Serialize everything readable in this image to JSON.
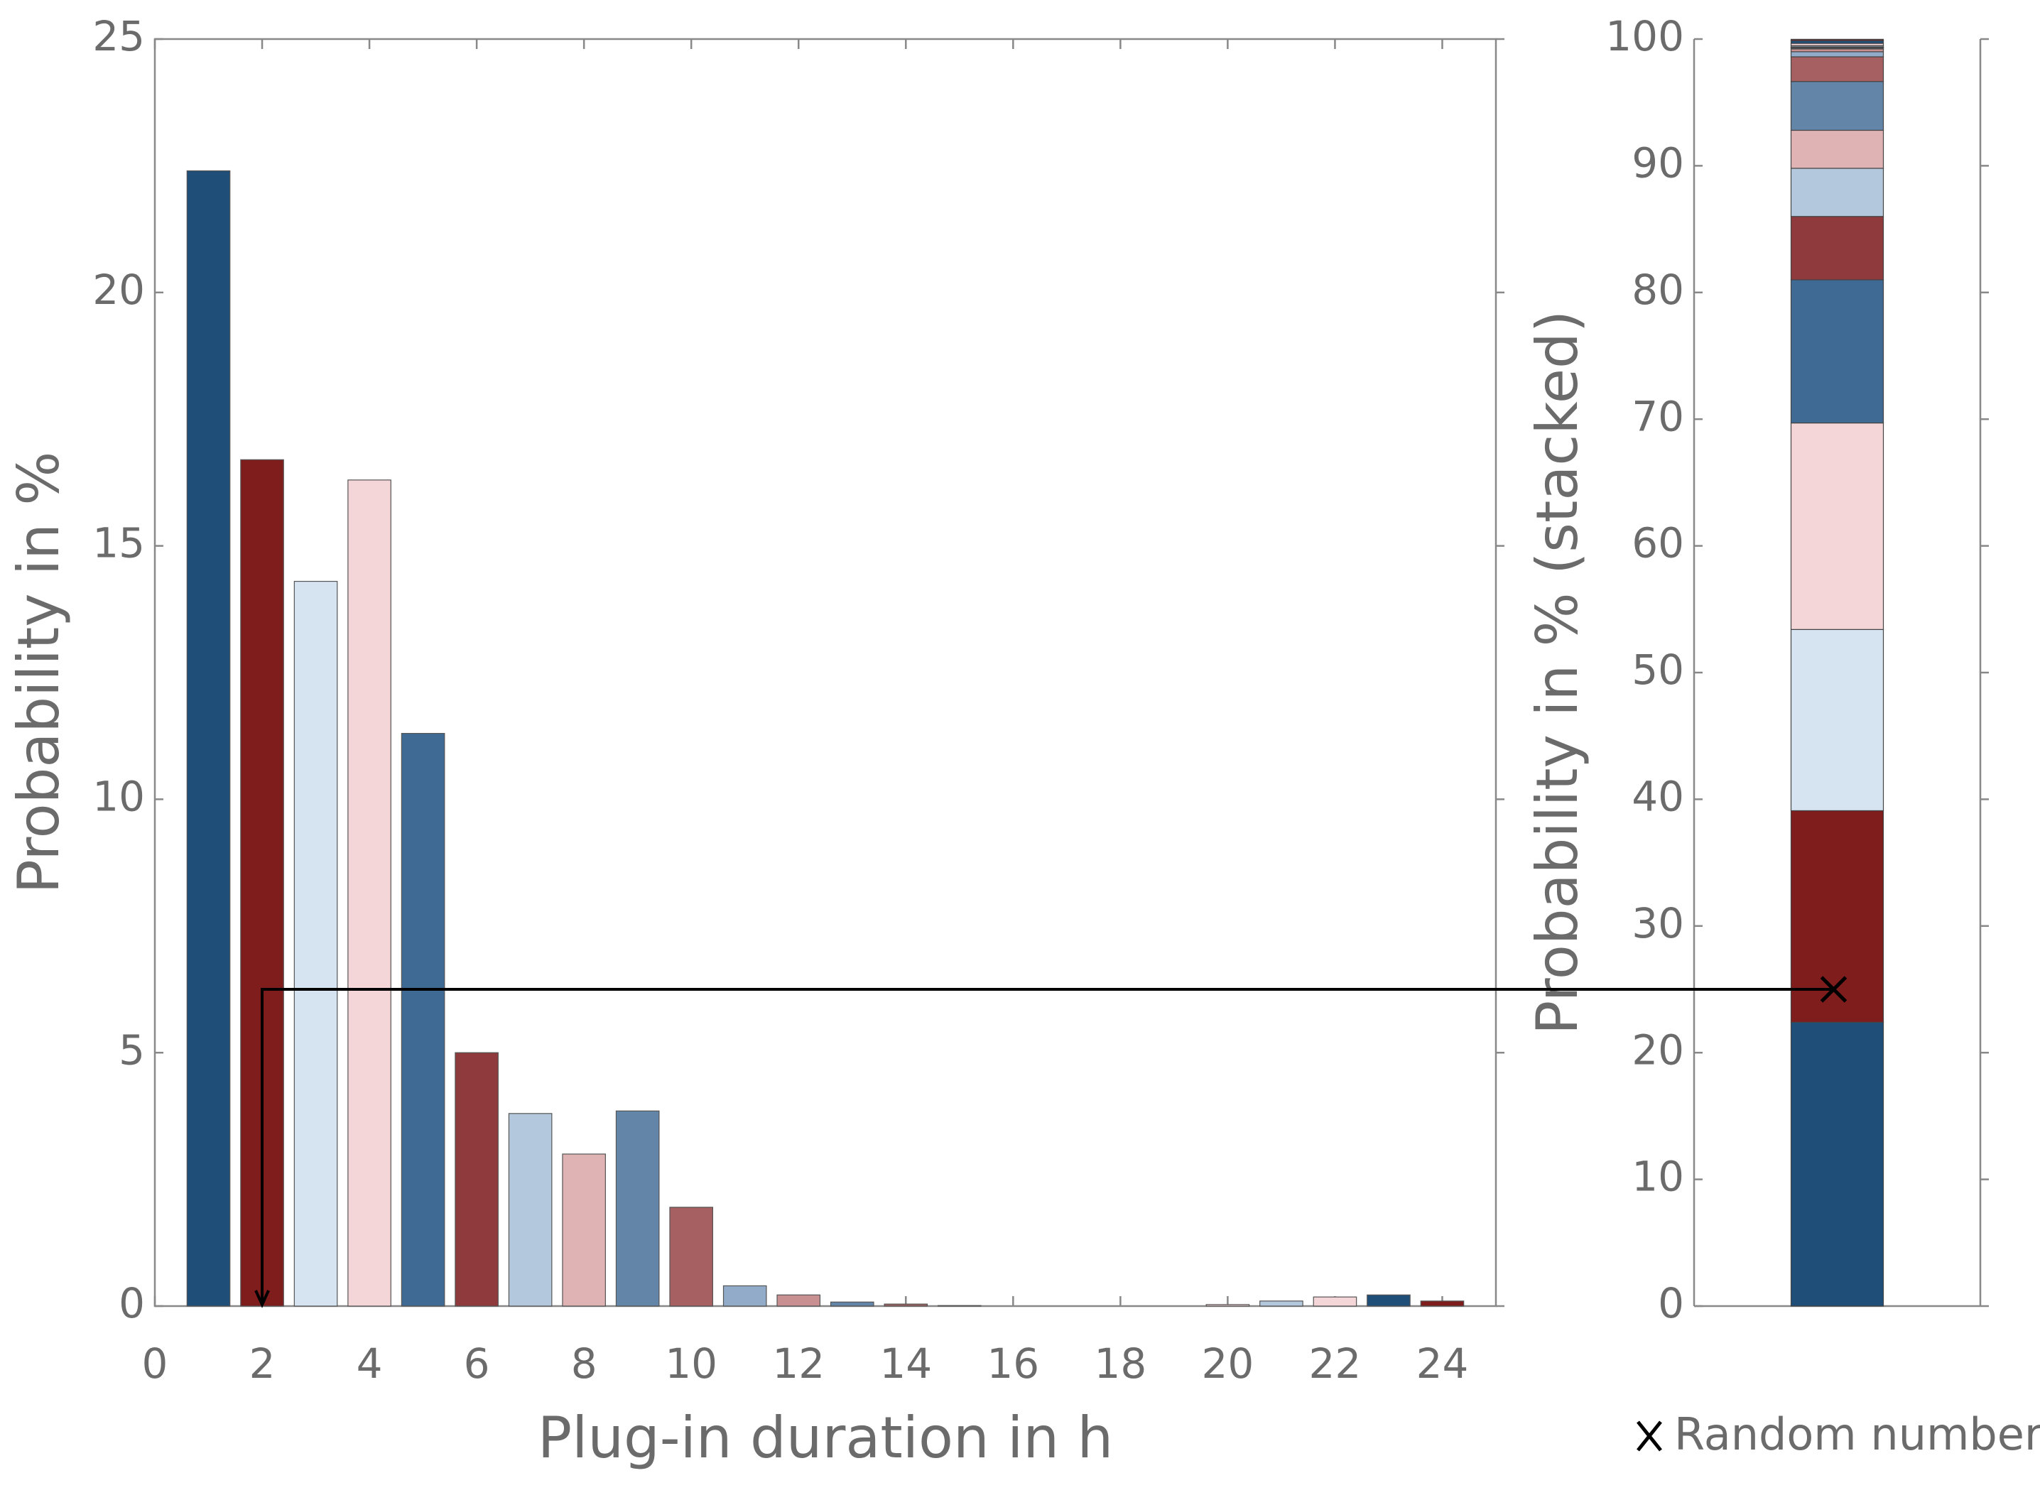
{
  "chart_data": [
    {
      "type": "bar",
      "x": [
        1,
        2,
        3,
        4,
        5,
        6,
        7,
        8,
        9,
        10,
        11,
        12,
        13,
        14,
        15,
        16,
        17,
        18,
        19,
        20,
        21,
        22,
        23,
        24
      ],
      "values": [
        22.4,
        16.7,
        14.3,
        16.3,
        11.3,
        5.0,
        3.8,
        3.0,
        3.85,
        1.95,
        0.4,
        0.22,
        0.08,
        0.04,
        0.01,
        0,
        0,
        0,
        0,
        0.03,
        0.1,
        0.18,
        0.22,
        0.1
      ],
      "colors": [
        "#1f4e79",
        "#7f1d1d",
        "#d6e4f2",
        "#f4d6d8",
        "#3f6a93",
        "#8f3a3c",
        "#b3c8dc",
        "#dfb2b4",
        "#6385a8",
        "#a66062",
        "#91abc8",
        "#c99092",
        "#6385a8",
        "#a66062",
        "#b3c8dc",
        "#dfb2b4",
        "#3f6a93",
        "#8f3a3c",
        "#d6e4f2",
        "#f4d6d8",
        "#b3c8dc",
        "#f4d6d8",
        "#1f4e79",
        "#7f1d1d"
      ],
      "xlim": [
        0,
        25
      ],
      "xticks": [
        0,
        2,
        4,
        6,
        8,
        10,
        12,
        14,
        16,
        18,
        20,
        22,
        24
      ],
      "ylim": [
        0,
        25
      ],
      "yticks": [
        0,
        5,
        10,
        15,
        20,
        25
      ],
      "x_label": "Plug-in duration in h",
      "y_label": "Probability in %",
      "selected_x": 2
    },
    {
      "type": "stacked-bar",
      "values": [
        22.4,
        16.7,
        14.3,
        16.3,
        11.3,
        5.0,
        3.8,
        3.0,
        3.85,
        1.95,
        0.4,
        0.22,
        0.08,
        0.04,
        0.01,
        0,
        0,
        0,
        0,
        0.03,
        0.1,
        0.18,
        0.22,
        0.1
      ],
      "colors": [
        "#1f4e79",
        "#7f1d1d",
        "#d6e4f2",
        "#f4d6d8",
        "#3f6a93",
        "#8f3a3c",
        "#b3c8dc",
        "#dfb2b4",
        "#6385a8",
        "#a66062",
        "#91abc8",
        "#c99092",
        "#6385a8",
        "#a66062",
        "#b3c8dc",
        "#dfb2b4",
        "#3f6a93",
        "#8f3a3c",
        "#d6e4f2",
        "#f4d6d8",
        "#b3c8dc",
        "#f4d6d8",
        "#1f4e79",
        "#7f1d1d"
      ],
      "ylim": [
        0,
        100
      ],
      "yticks": [
        0,
        10,
        20,
        30,
        40,
        50,
        60,
        70,
        80,
        90,
        100
      ],
      "y_label": "Probability in % (stacked)",
      "marker": {
        "label": "Random number",
        "value": 25
      }
    }
  ]
}
